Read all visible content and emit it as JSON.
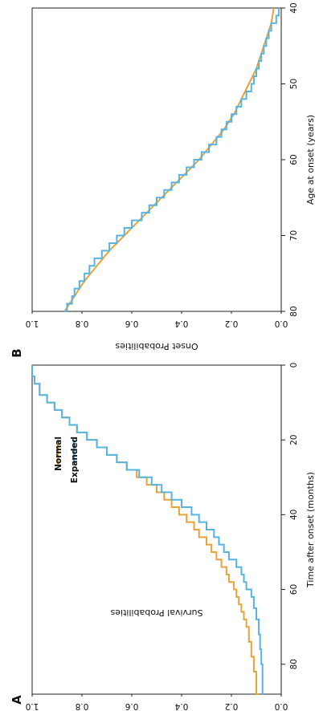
{
  "chart_data": [
    {
      "panel_label": "A",
      "type": "line",
      "step": true,
      "xlabel": "Time after onset (months)",
      "ylabel": "Survival Probabilities",
      "xlim": [
        0,
        88
      ],
      "ylim": [
        0,
        1
      ],
      "x_ticks": [
        "0",
        "20",
        "40",
        "60",
        "80"
      ],
      "y_ticks": [
        "0.0",
        "0.2",
        "0.4",
        "0.6",
        "0.8",
        "1.0"
      ],
      "legend_position": "top-right",
      "colors": {
        "Normal": "#E8A23A",
        "Expanded": "#56B4E0"
      },
      "series": [
        {
          "name": "Normal",
          "points": [
            [
              0,
              1.0
            ],
            [
              3,
              0.99
            ],
            [
              5,
              0.97
            ],
            [
              8,
              0.94
            ],
            [
              10,
              0.91
            ],
            [
              12,
              0.88
            ],
            [
              14,
              0.85
            ],
            [
              16,
              0.82
            ],
            [
              18,
              0.78
            ],
            [
              20,
              0.74
            ],
            [
              22,
              0.7
            ],
            [
              24,
              0.66
            ],
            [
              26,
              0.62
            ],
            [
              28,
              0.58
            ],
            [
              30,
              0.54
            ],
            [
              32,
              0.5
            ],
            [
              34,
              0.47
            ],
            [
              36,
              0.44
            ],
            [
              38,
              0.41
            ],
            [
              40,
              0.38
            ],
            [
              42,
              0.35
            ],
            [
              44,
              0.33
            ],
            [
              46,
              0.3
            ],
            [
              48,
              0.28
            ],
            [
              50,
              0.26
            ],
            [
              52,
              0.24
            ],
            [
              54,
              0.22
            ],
            [
              56,
              0.21
            ],
            [
              58,
              0.19
            ],
            [
              60,
              0.18
            ],
            [
              62,
              0.17
            ],
            [
              64,
              0.16
            ],
            [
              66,
              0.15
            ],
            [
              68,
              0.14
            ],
            [
              70,
              0.13
            ],
            [
              74,
              0.12
            ],
            [
              78,
              0.11
            ],
            [
              82,
              0.1
            ],
            [
              88,
              0.09
            ]
          ]
        },
        {
          "name": "Expanded",
          "points": [
            [
              0,
              1.0
            ],
            [
              3,
              0.99
            ],
            [
              5,
              0.97
            ],
            [
              8,
              0.94
            ],
            [
              10,
              0.91
            ],
            [
              12,
              0.88
            ],
            [
              14,
              0.85
            ],
            [
              16,
              0.82
            ],
            [
              18,
              0.78
            ],
            [
              20,
              0.74
            ],
            [
              22,
              0.7
            ],
            [
              24,
              0.66
            ],
            [
              26,
              0.62
            ],
            [
              28,
              0.57
            ],
            [
              30,
              0.52
            ],
            [
              32,
              0.48
            ],
            [
              34,
              0.44
            ],
            [
              36,
              0.4
            ],
            [
              38,
              0.36
            ],
            [
              40,
              0.33
            ],
            [
              42,
              0.3
            ],
            [
              44,
              0.27
            ],
            [
              46,
              0.25
            ],
            [
              48,
              0.23
            ],
            [
              50,
              0.21
            ],
            [
              52,
              0.18
            ],
            [
              54,
              0.16
            ],
            [
              56,
              0.15
            ],
            [
              58,
              0.14
            ],
            [
              60,
              0.12
            ],
            [
              62,
              0.11
            ],
            [
              65,
              0.1
            ],
            [
              68,
              0.09
            ],
            [
              72,
              0.085
            ],
            [
              76,
              0.08
            ],
            [
              80,
              0.075
            ],
            [
              88,
              0.07
            ]
          ]
        }
      ]
    },
    {
      "panel_label": "B",
      "type": "line",
      "step": false,
      "xlabel": "Age at onset (years)",
      "ylabel": "Onset Probabilities",
      "xlim": [
        40,
        80
      ],
      "ylim": [
        0,
        1
      ],
      "x_ticks": [
        "40",
        "50",
        "60",
        "70",
        "80"
      ],
      "y_ticks": [
        "0.0",
        "0.2",
        "0.4",
        "0.6",
        "0.8",
        "1.0"
      ],
      "colors": {
        "smooth": "#E8A23A",
        "step": "#56B4E0"
      },
      "series": [
        {
          "points": [
            [
              40,
              0.03
            ],
            [
              42,
              0.04
            ],
            [
              44,
              0.06
            ],
            [
              46,
              0.08
            ],
            [
              48,
              0.1
            ],
            [
              50,
              0.13
            ],
            [
              52,
              0.16
            ],
            [
              54,
              0.19
            ],
            [
              56,
              0.23
            ],
            [
              58,
              0.28
            ],
            [
              60,
              0.33
            ],
            [
              62,
              0.39
            ],
            [
              64,
              0.45
            ],
            [
              66,
              0.51
            ],
            [
              68,
              0.57
            ],
            [
              70,
              0.63
            ],
            [
              72,
              0.69
            ],
            [
              74,
              0.74
            ],
            [
              76,
              0.79
            ],
            [
              78,
              0.83
            ],
            [
              80,
              0.87
            ]
          ]
        },
        {
          "step": true,
          "points": [
            [
              40,
              0.01
            ],
            [
              41,
              0.02
            ],
            [
              42,
              0.04
            ],
            [
              43,
              0.05
            ],
            [
              44,
              0.06
            ],
            [
              45,
              0.07
            ],
            [
              46,
              0.08
            ],
            [
              47,
              0.09
            ],
            [
              48,
              0.1
            ],
            [
              49,
              0.11
            ],
            [
              50,
              0.12
            ],
            [
              51,
              0.14
            ],
            [
              52,
              0.16
            ],
            [
              53,
              0.18
            ],
            [
              54,
              0.2
            ],
            [
              55,
              0.22
            ],
            [
              56,
              0.24
            ],
            [
              57,
              0.26
            ],
            [
              58,
              0.29
            ],
            [
              59,
              0.32
            ],
            [
              60,
              0.35
            ],
            [
              61,
              0.38
            ],
            [
              62,
              0.41
            ],
            [
              63,
              0.44
            ],
            [
              64,
              0.47
            ],
            [
              65,
              0.5
            ],
            [
              66,
              0.53
            ],
            [
              67,
              0.56
            ],
            [
              68,
              0.6
            ],
            [
              69,
              0.63
            ],
            [
              70,
              0.66
            ],
            [
              71,
              0.69
            ],
            [
              72,
              0.72
            ],
            [
              73,
              0.75
            ],
            [
              74,
              0.77
            ],
            [
              75,
              0.79
            ],
            [
              76,
              0.81
            ],
            [
              77,
              0.83
            ],
            [
              78,
              0.84
            ],
            [
              79,
              0.86
            ],
            [
              80,
              0.87
            ]
          ]
        }
      ]
    }
  ]
}
